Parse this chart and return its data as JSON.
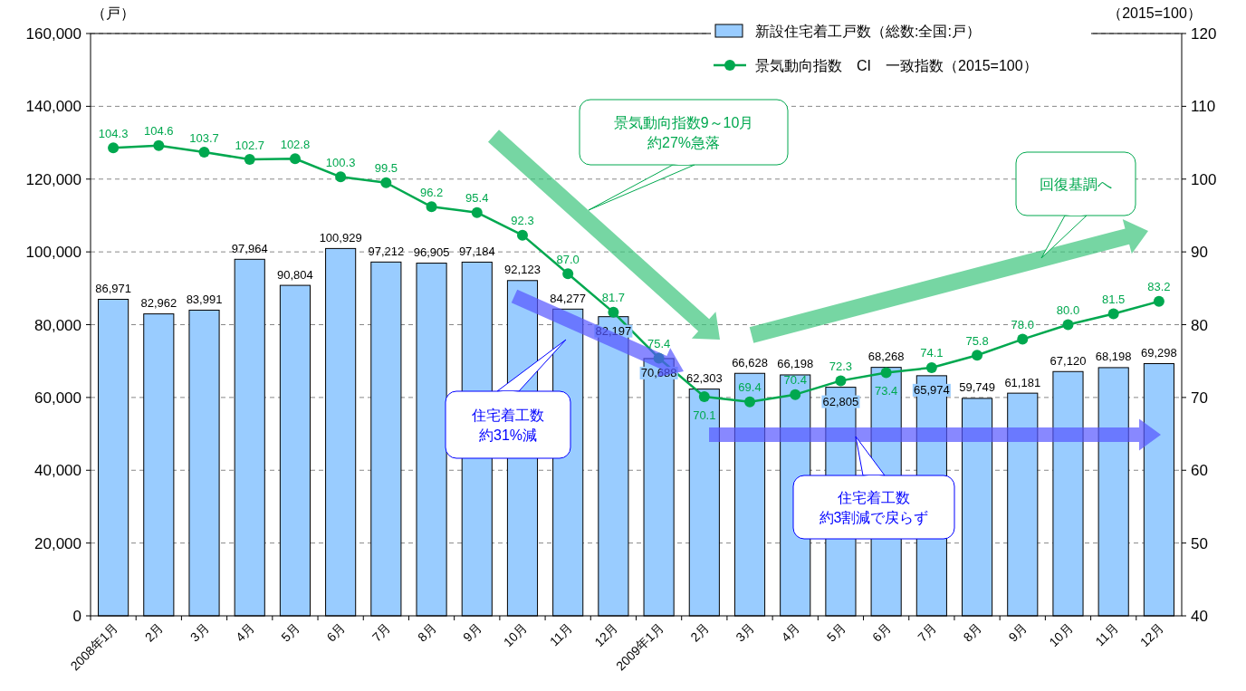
{
  "chart_data": {
    "type": "bar",
    "categories": [
      "2008年1月",
      "2月",
      "3月",
      "4月",
      "5月",
      "6月",
      "7月",
      "8月",
      "9月",
      "10月",
      "11月",
      "12月",
      "2009年1月",
      "2月",
      "3月",
      "4月",
      "5月",
      "6月",
      "7月",
      "8月",
      "9月",
      "10月",
      "11月",
      "12月"
    ],
    "series": [
      {
        "name": "新設住宅着工戸数（総数:全国:戸）",
        "color": "#99ccff",
        "values": [
          86971,
          82962,
          83991,
          97964,
          90804,
          100929,
          97212,
          96905,
          97184,
          92123,
          84277,
          82197,
          70688,
          62303,
          66628,
          66198,
          62805,
          68268,
          65974,
          59749,
          61181,
          67120,
          68198,
          69298
        ],
        "value_labels": [
          "86,971",
          "82,962",
          "83,991",
          "97,964",
          "90,804",
          "100,929",
          "97,212",
          "96,905",
          "97,184",
          "92,123",
          "84,277",
          "82,197",
          "70,688",
          "62,303",
          "66,628",
          "66,198",
          "62,805",
          "68,268",
          "65,974",
          "59,749",
          "61,181",
          "67,120",
          "68,198",
          "69,298"
        ]
      },
      {
        "name": "景気動向指数　CI　一致指数（2015=100）",
        "type": "line",
        "axis": "y2",
        "color": "#00a84f",
        "values": [
          104.3,
          104.6,
          103.7,
          102.7,
          102.8,
          100.3,
          99.5,
          96.2,
          95.4,
          92.3,
          87.0,
          81.7,
          75.4,
          70.1,
          69.4,
          70.4,
          72.3,
          73.4,
          74.1,
          75.8,
          78.0,
          80.0,
          81.5,
          83.2
        ],
        "value_labels": [
          "104.3",
          "104.6",
          "103.7",
          "102.7",
          "102.8",
          "100.3",
          "99.5",
          "96.2",
          "95.4",
          "92.3",
          "87.0",
          "81.7",
          "75.4",
          "70.1",
          "69.4",
          "70.4",
          "72.3",
          "73.4",
          "74.1",
          "75.8",
          "78.0",
          "80.0",
          "81.5",
          "83.2"
        ]
      }
    ],
    "ylabel": "（戸）",
    "y2label": "（2015=100）",
    "ylim": [
      0,
      160000
    ],
    "yticks": [
      {
        "value": 0,
        "label": "0"
      },
      {
        "value": 20000,
        "label": "20,000"
      },
      {
        "value": 40000,
        "label": "40,000"
      },
      {
        "value": 60000,
        "label": "60,000"
      },
      {
        "value": 80000,
        "label": "80,000"
      },
      {
        "value": 100000,
        "label": "100,000"
      },
      {
        "value": 120000,
        "label": "120,000"
      },
      {
        "value": 140000,
        "label": "140,000"
      },
      {
        "value": 160000,
        "label": "160,000"
      }
    ],
    "y2lim": [
      40,
      120
    ],
    "y2ticks": [
      40,
      50,
      60,
      70,
      80,
      90,
      100,
      110,
      120
    ],
    "grid": "y",
    "legend": "top right",
    "marker": "circle",
    "annotations": [
      "景気動向指数9～10月約27%急落",
      "住宅着工数約31%減",
      "住宅着工数約3割減で戻らず",
      "回復基調へ"
    ]
  }
}
